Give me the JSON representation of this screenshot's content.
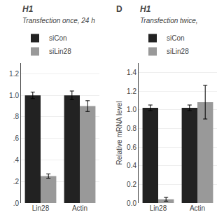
{
  "chart_data": [
    {
      "type": "bar",
      "title": "H1",
      "subtitle": "Transfection once, 24 h",
      "categories": [
        "Lin28",
        "Actin"
      ],
      "series": [
        {
          "name": "siCon",
          "color": "#222222",
          "values": [
            1.0,
            1.0
          ],
          "error": [
            0.03,
            0.04
          ]
        },
        {
          "name": "siLin28",
          "color": "#999999",
          "values": [
            0.25,
            0.9
          ],
          "error": [
            0.02,
            0.05
          ]
        }
      ],
      "ylim": [
        0.0,
        1.3
      ],
      "yticks": [
        {
          "value": 0.0,
          "label": ".0"
        },
        {
          "value": 0.2,
          "label": ".2"
        },
        {
          "value": 0.4,
          "label": ".4"
        },
        {
          "value": 0.6,
          "label": ".6"
        },
        {
          "value": 0.8,
          "label": ".8"
        },
        {
          "value": 1.0,
          "label": "1.0"
        },
        1.2
      ],
      "grid": true,
      "legend": "top"
    },
    {
      "type": "bar",
      "title": "H1",
      "subtitle": "Transfection twice,",
      "annotations": [
        "D"
      ],
      "categories": [
        "Lin28",
        "Actin"
      ],
      "series": [
        {
          "name": "siCon",
          "color": "#222222",
          "values": [
            1.02,
            1.02
          ],
          "error": [
            0.03,
            0.03
          ]
        },
        {
          "name": "siLin28",
          "color": "#999999",
          "values": [
            0.04,
            1.08
          ],
          "error": [
            0.02,
            0.18
          ]
        }
      ],
      "ylabel": "Relative mRNA level",
      "ylim": [
        0.0,
        1.5
      ],
      "yticks": [
        {
          "value": 0.0,
          "label": "0.0"
        },
        0.2,
        0.4,
        0.6,
        0.8,
        {
          "value": 1.0,
          "label": "1.0"
        },
        1.2,
        1.4
      ],
      "grid": true,
      "legend": "top"
    }
  ]
}
